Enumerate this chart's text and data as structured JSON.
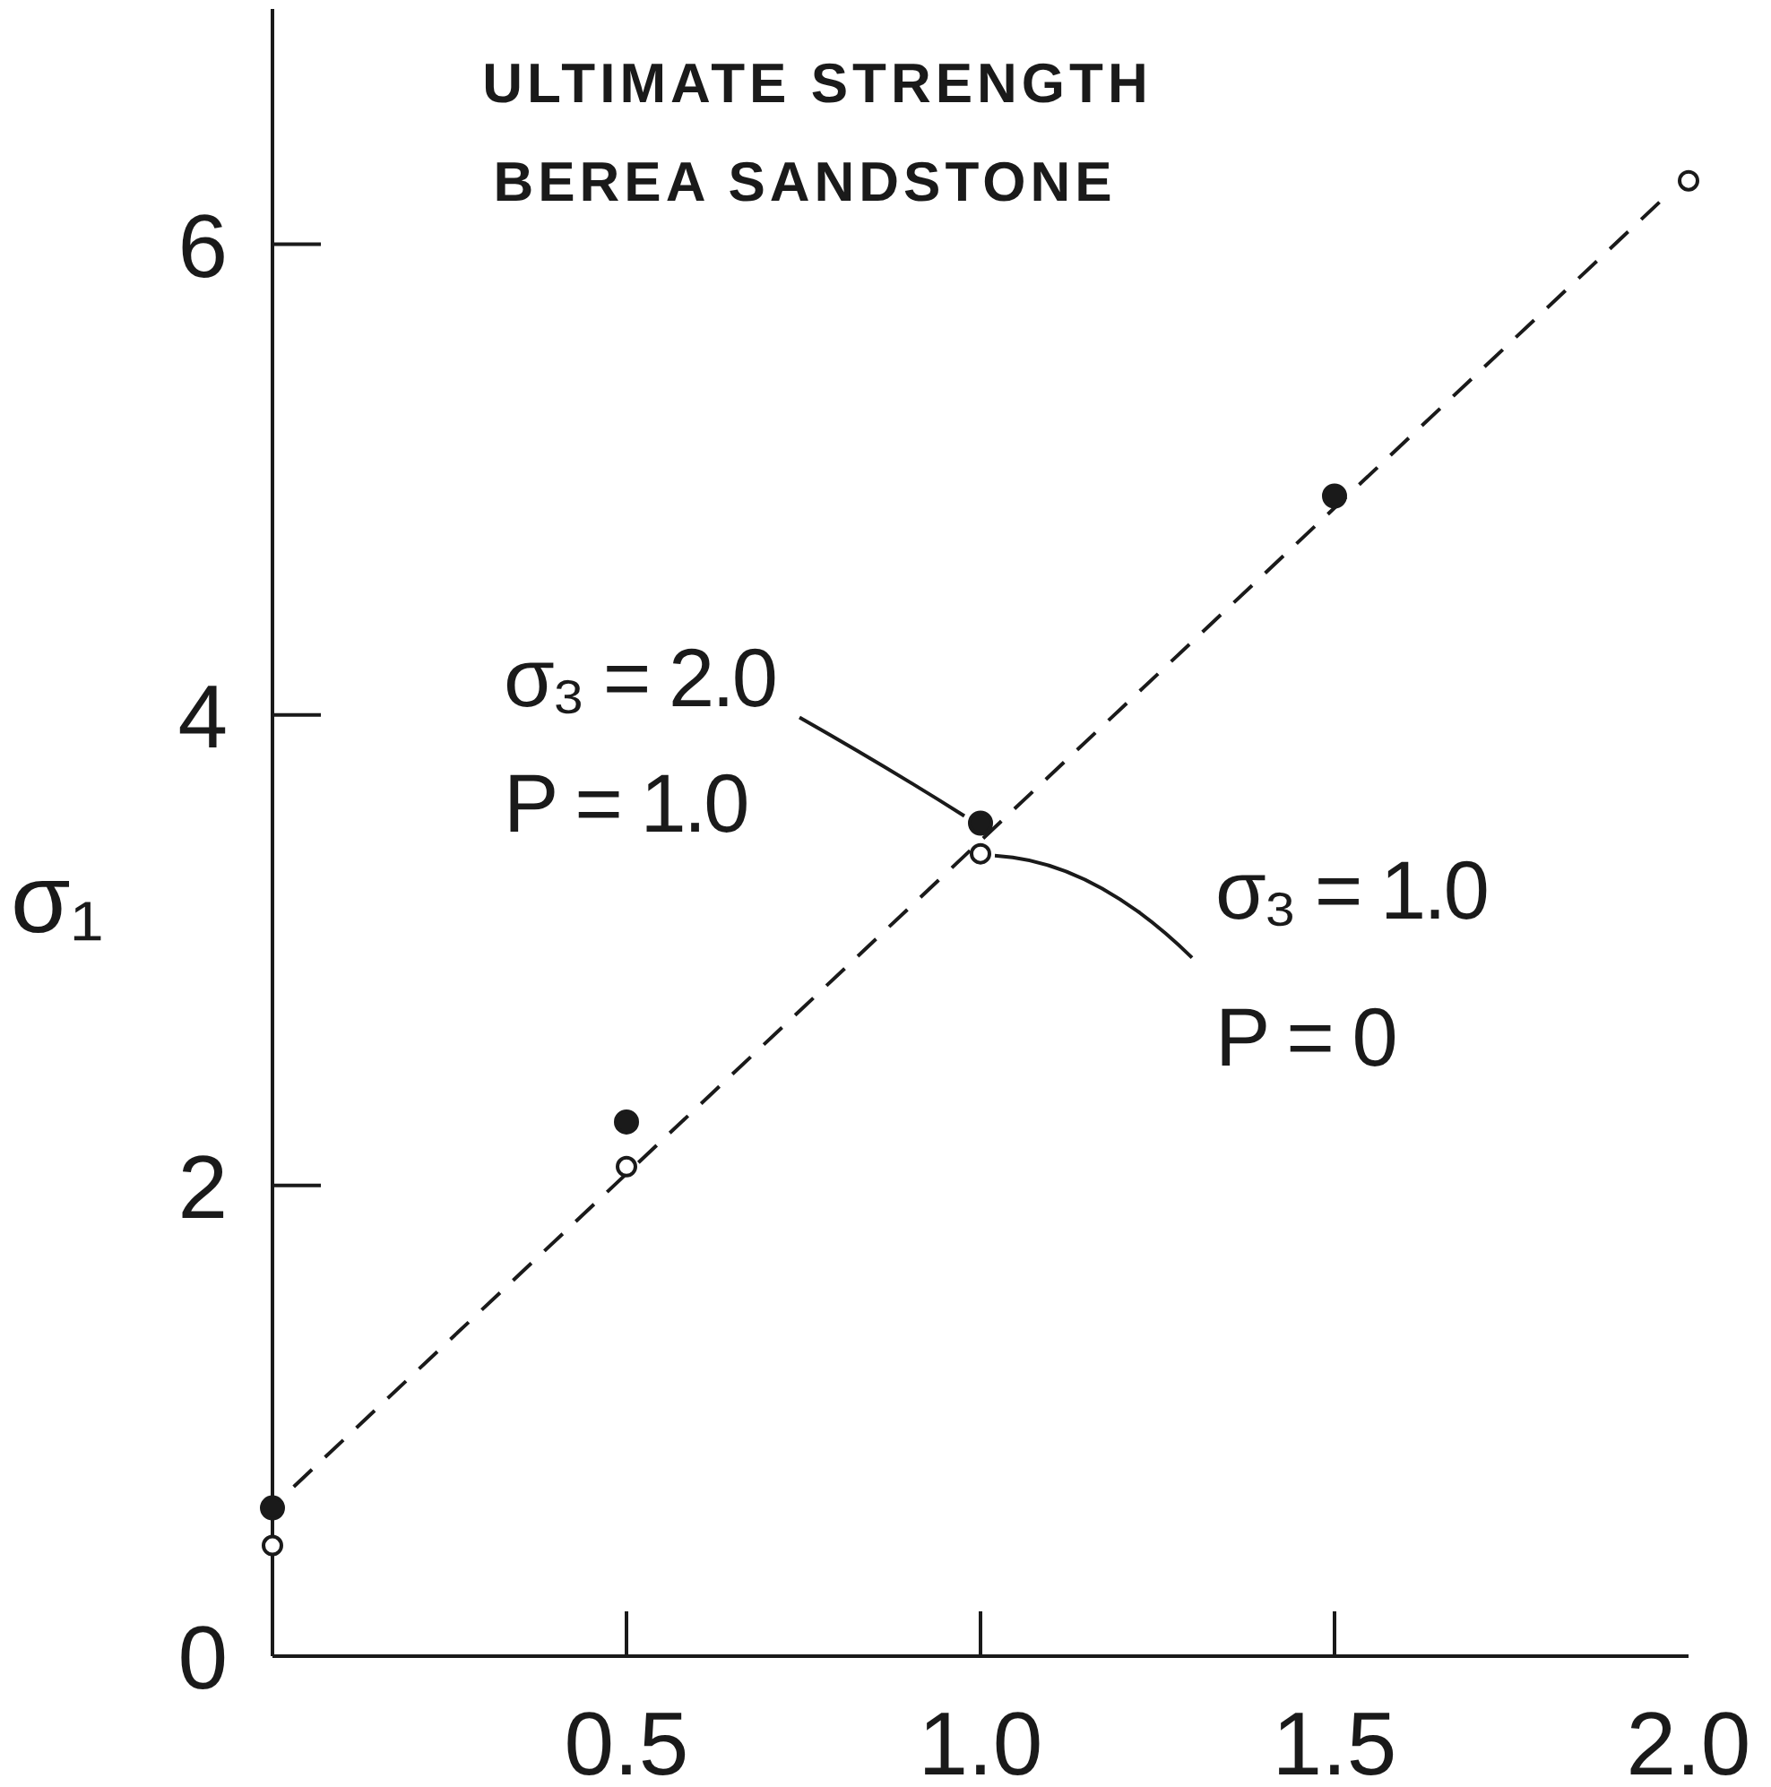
{
  "chart_data": {
    "type": "scatter",
    "title": "ULTIMATE STRENGTH",
    "subtitle": "BEREA SANDSTONE",
    "ylabel": "σ₁",
    "xlim": [
      0,
      2
    ],
    "xticks": [
      0.5,
      {
        "value": 1,
        "label": "1.0"
      },
      1.5,
      {
        "value": 2,
        "label": "2.0"
      }
    ],
    "ylim": [
      0,
      7
    ],
    "yticks": [
      0,
      2,
      4,
      6
    ],
    "grid": false,
    "legend": false,
    "marker": "circle",
    "series": [
      {
        "color": "#1a1a1a",
        "x": [
          0,
          0.5,
          1,
          1.5
        ],
        "values": [
          0.63,
          2.27,
          3.54,
          4.93
        ]
      },
      {
        "color": "#1a1a1a",
        "x": [
          0,
          0.5,
          1,
          2
        ],
        "values": [
          0.47,
          2.08,
          3.41,
          6.27
        ]
      },
      {
        "type": "line",
        "color": "#1a1a1a",
        "line_style": "dashed",
        "marker": "none",
        "x": [
          0.03,
          1.97
        ],
        "values": [
          0.72,
          6.21
        ]
      }
    ],
    "annotations": [
      {
        "text": "σ₃ = 2.0\nP = 1.0",
        "x": 1,
        "y": 3.54
      },
      {
        "text": "σ₃ = 1.0\nP = 0",
        "x": 1,
        "y": 3.41
      }
    ]
  }
}
